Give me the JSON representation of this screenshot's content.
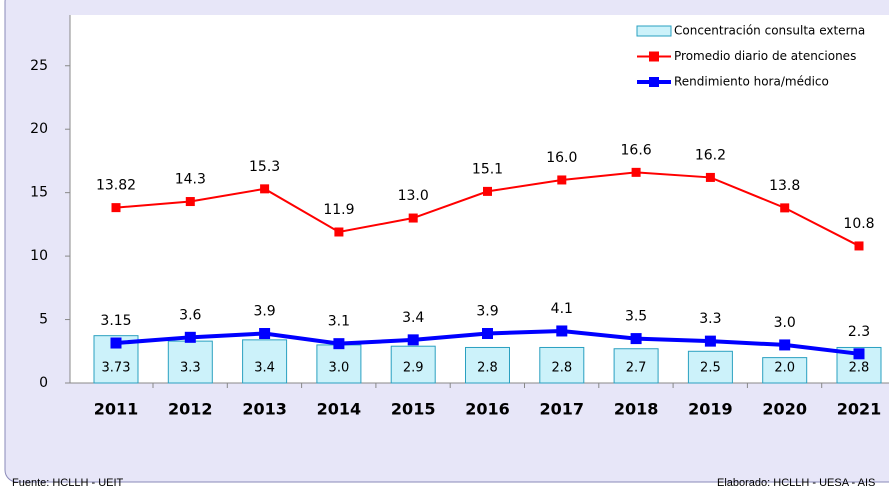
{
  "chart_data": {
    "type": "combo",
    "categories": [
      "2011",
      "2012",
      "2013",
      "2014",
      "2015",
      "2016",
      "2017",
      "2018",
      "2019",
      "2020",
      "2021"
    ],
    "series": [
      {
        "name": "Concentración consulta externa",
        "type": "bar",
        "color": "#ccf2fa",
        "edge": "#2aa0c0",
        "values": [
          3.73,
          3.3,
          3.4,
          3.0,
          2.9,
          2.8,
          2.8,
          2.7,
          2.5,
          2.0,
          2.8
        ],
        "value_labels": [
          "3.73",
          "3.3",
          "3.4",
          "3.0",
          "2.9",
          "2.8",
          "2.8",
          "2.7",
          "2.5",
          "2.0",
          "2.8"
        ]
      },
      {
        "name": "Promedio diario de atenciones",
        "type": "line",
        "color": "#ff0000",
        "values": [
          13.82,
          14.3,
          15.3,
          11.9,
          13.0,
          15.1,
          16.0,
          16.6,
          16.2,
          13.8,
          10.8
        ],
        "value_labels": [
          "13.82",
          "14.3",
          "15.3",
          "11.9",
          "13.0",
          "15.1",
          "16.0",
          "16.6",
          "16.2",
          "13.8",
          "10.8"
        ]
      },
      {
        "name": "Rendimiento hora/médico",
        "type": "line",
        "color": "#0000ff",
        "values": [
          3.15,
          3.6,
          3.9,
          3.1,
          3.4,
          3.9,
          4.1,
          3.5,
          3.3,
          3.0,
          2.3
        ],
        "value_labels": [
          "3.15",
          "3.6",
          "3.9",
          "3.1",
          "3.4",
          "3.9",
          "4.1",
          "3.5",
          "3.3",
          "3.0",
          "2.3"
        ]
      }
    ],
    "ylim": [
      0,
      29
    ],
    "yticks": [
      0,
      5,
      10,
      15,
      20,
      25
    ],
    "legend": "top-right",
    "source": "Fuente: HCLLH - UEIT",
    "credit": "Elaborado: HCLLH - UESA - AIS"
  }
}
